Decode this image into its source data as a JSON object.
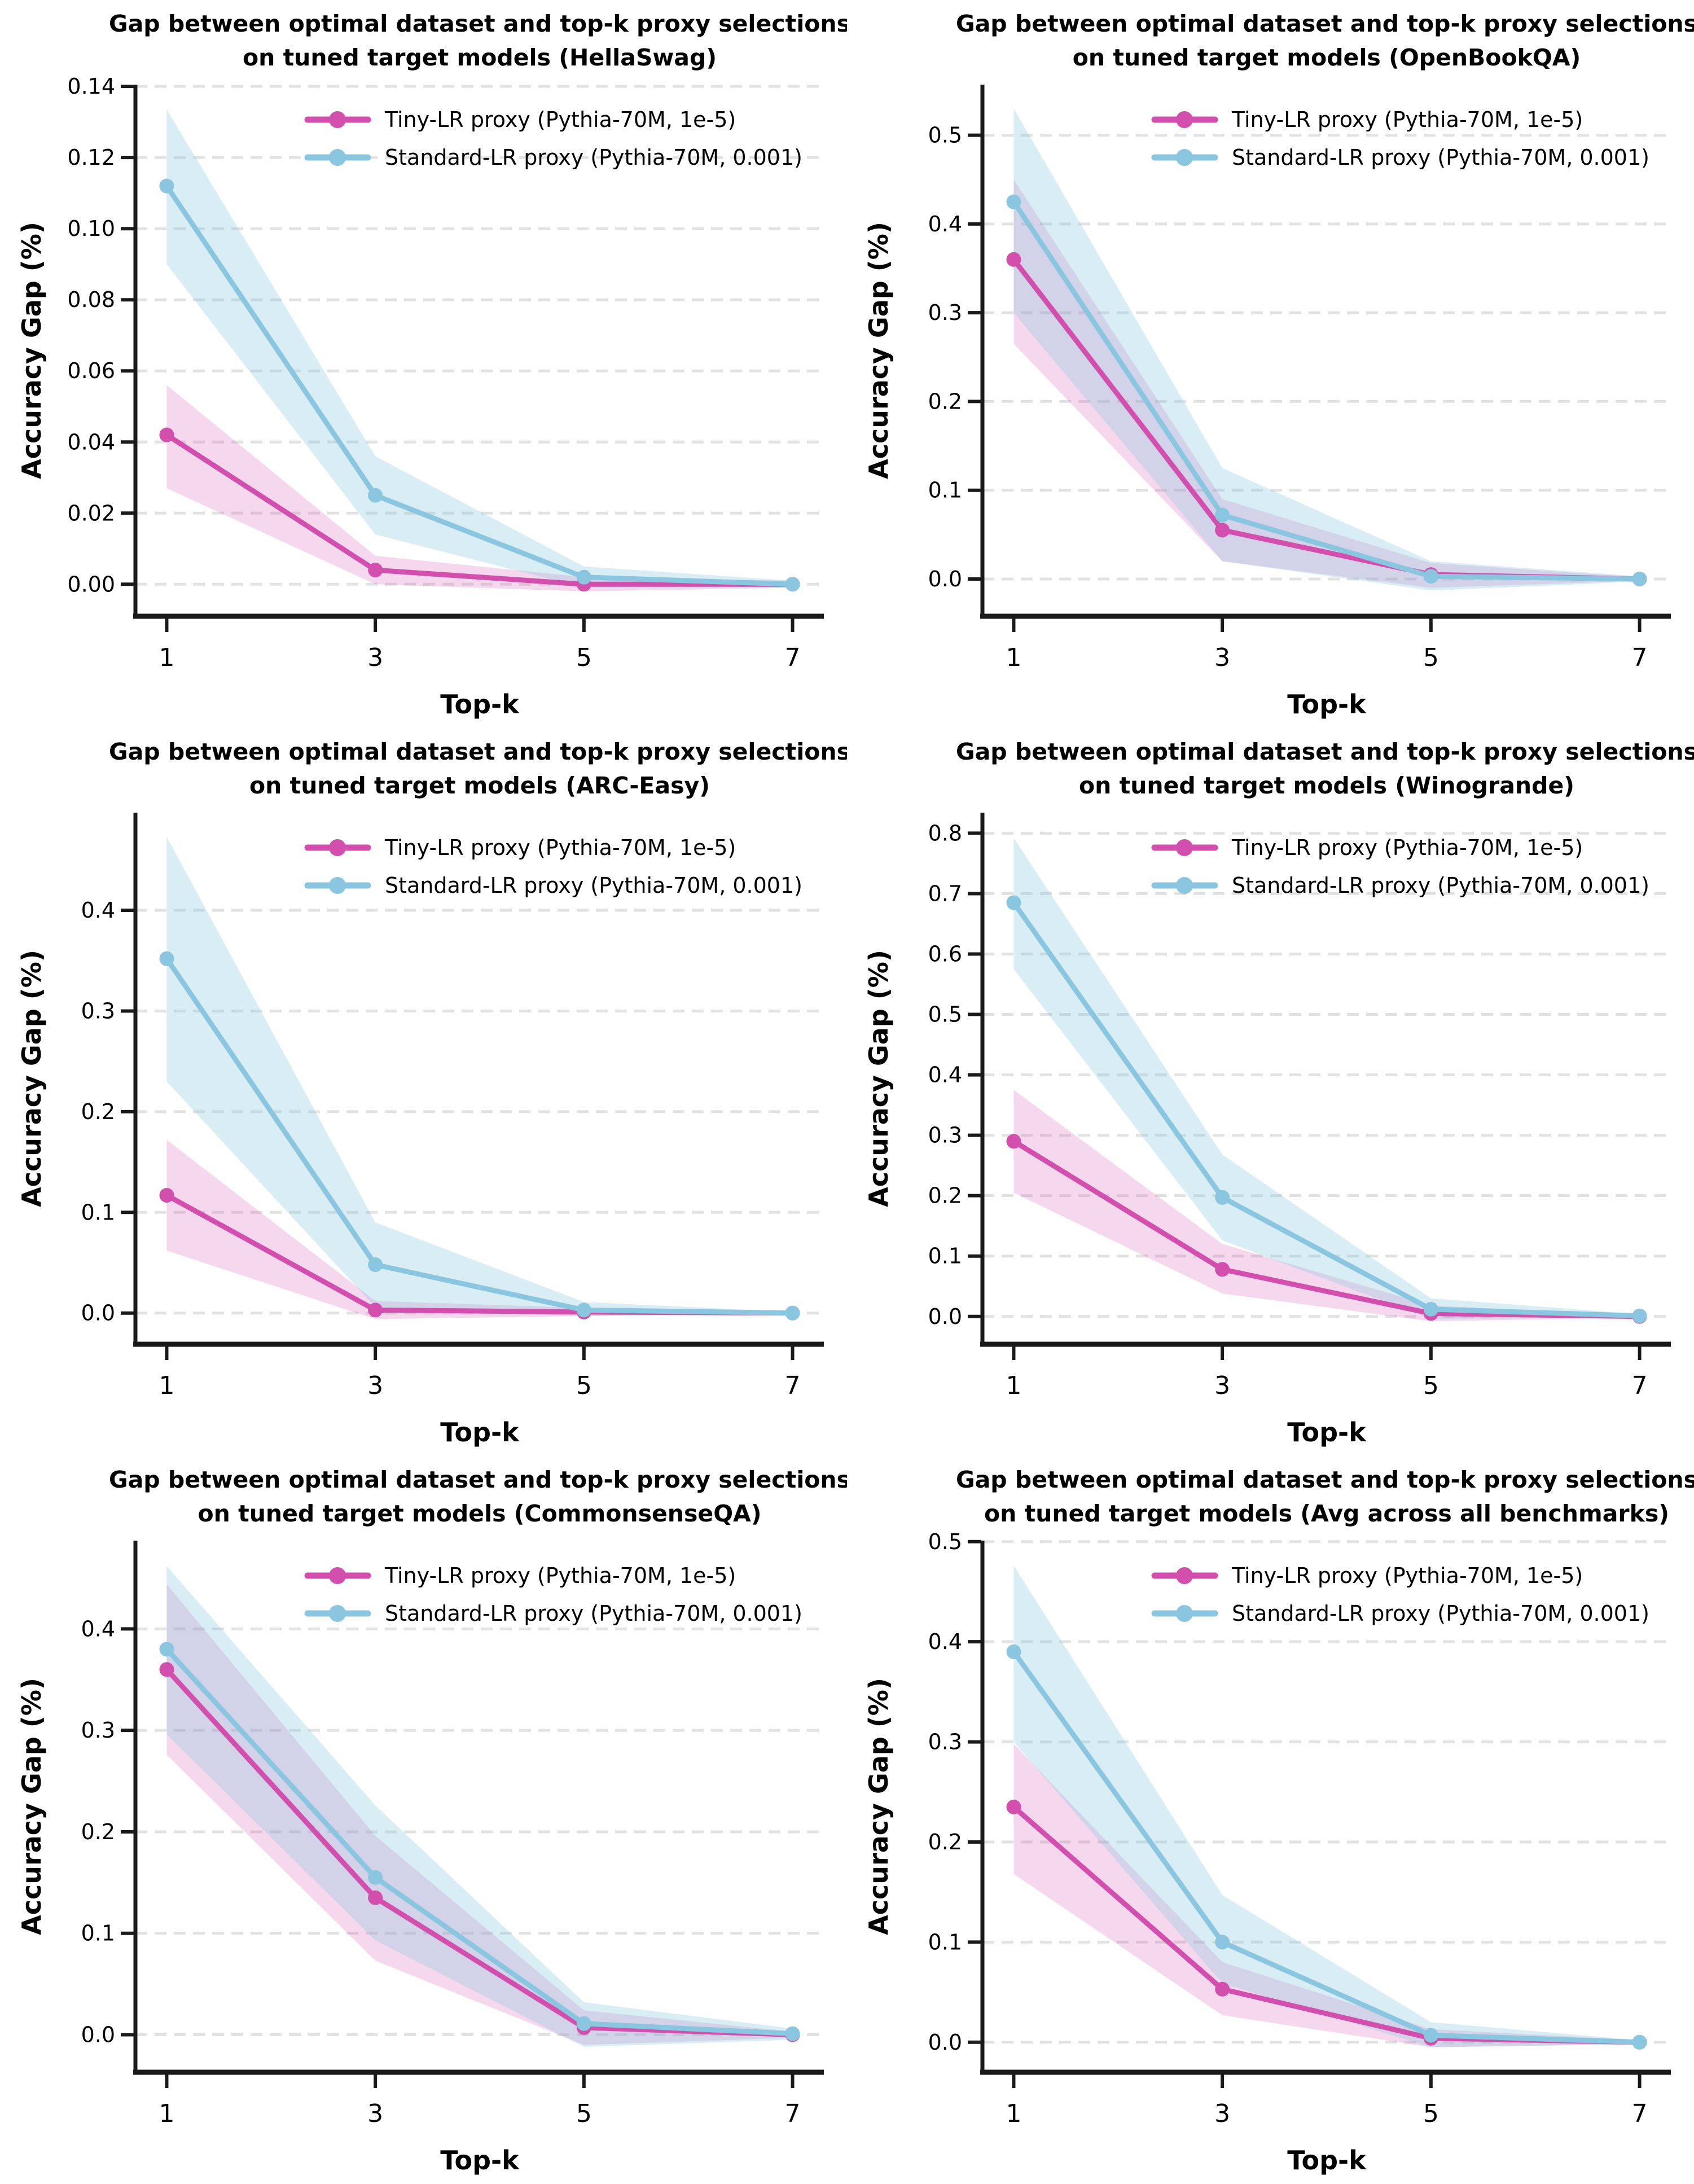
{
  "figure": {
    "title_line1": "Gap between optimal dataset and top-k proxy selections",
    "xlabel": "Top-k",
    "ylabel": "Accuracy Gap (%)",
    "x_tick_labels": [
      "1",
      "3",
      "5",
      "7"
    ],
    "legend": {
      "items": [
        {
          "label": "Tiny-LR proxy (Pythia-70M, 1e-5)",
          "color": "#d24fae"
        },
        {
          "label": "Standard-LR proxy (Pythia-70M, 0.001)",
          "color": "#8ac6e0"
        }
      ]
    },
    "colors": {
      "tiny_lr": "#d24fae",
      "standard_lr": "#8ac6e0",
      "gridline": "#e2e2e2",
      "axis": "#1a1a1a",
      "text": "#000000"
    }
  },
  "chart_data": [
    {
      "type": "line",
      "benchmark": "HellaSwag",
      "title": [
        "Gap between optimal dataset and top-k proxy selections",
        "on tuned target models (HellaSwag)"
      ],
      "xlabel": "Top-k",
      "ylabel": "Accuracy Gap (%)",
      "x": [
        1,
        3,
        5,
        7
      ],
      "xlim": [
        0.7,
        7.3
      ],
      "ylim": [
        -0.009,
        0.1405
      ],
      "yticks": [
        0,
        0.02,
        0.04,
        0.06,
        0.08,
        0.1,
        0.12,
        0.14
      ],
      "ytick_decimals": 2,
      "grid": "dashed-horizontal",
      "legend_position": "upper center inside",
      "series": [
        {
          "name": "Tiny-LR proxy (Pythia-70M, 1e-5)",
          "color": "#d24fae",
          "band_opacity": 0.22,
          "values": [
            0.042,
            0.004,
            0.0,
            0.0
          ],
          "band_low": [
            0.027,
            0.0,
            -0.002,
            -0.001
          ],
          "band_high": [
            0.056,
            0.008,
            0.002,
            0.001
          ]
        },
        {
          "name": "Standard-LR proxy (Pythia-70M, 0.001)",
          "color": "#8ac6e0",
          "band_opacity": 0.32,
          "values": [
            0.112,
            0.025,
            0.002,
            0.0
          ],
          "band_low": [
            0.09,
            0.014,
            -0.001,
            -0.001
          ],
          "band_high": [
            0.1335,
            0.036,
            0.005,
            0.001
          ]
        }
      ]
    },
    {
      "type": "line",
      "benchmark": "OpenBookQA",
      "title": [
        "Gap between optimal dataset and top-k proxy selections",
        "on tuned target models (OpenBookQA)"
      ],
      "xlabel": "Top-k",
      "ylabel": "Accuracy Gap (%)",
      "x": [
        1,
        3,
        5,
        7
      ],
      "xlim": [
        0.7,
        7.3
      ],
      "ylim": [
        -0.042,
        0.557
      ],
      "yticks": [
        0,
        0.1,
        0.2,
        0.3,
        0.4,
        0.5
      ],
      "ytick_decimals": 1,
      "grid": "dashed-horizontal",
      "legend_position": "upper center inside",
      "series": [
        {
          "name": "Tiny-LR proxy (Pythia-70M, 1e-5)",
          "color": "#d24fae",
          "band_opacity": 0.22,
          "values": [
            0.36,
            0.055,
            0.005,
            0.0
          ],
          "band_low": [
            0.265,
            0.02,
            -0.01,
            -0.002
          ],
          "band_high": [
            0.45,
            0.09,
            0.018,
            0.002
          ]
        },
        {
          "name": "Standard-LR proxy (Pythia-70M, 0.001)",
          "color": "#8ac6e0",
          "band_opacity": 0.32,
          "values": [
            0.425,
            0.072,
            0.003,
            0.0
          ],
          "band_low": [
            0.3,
            0.02,
            -0.013,
            -0.003
          ],
          "band_high": [
            0.53,
            0.125,
            0.02,
            0.003
          ]
        }
      ]
    },
    {
      "type": "line",
      "benchmark": "ARC-Easy",
      "title": [
        "Gap between optimal dataset and top-k proxy selections",
        "on tuned target models (ARC-Easy)"
      ],
      "xlabel": "Top-k",
      "ylabel": "Accuracy Gap (%)",
      "x": [
        1,
        3,
        5,
        7
      ],
      "xlim": [
        0.7,
        7.3
      ],
      "ylim": [
        -0.031,
        0.497
      ],
      "yticks": [
        0,
        0.1,
        0.2,
        0.3,
        0.4
      ],
      "ytick_decimals": 1,
      "grid": "dashed-horizontal",
      "legend_position": "upper center inside",
      "series": [
        {
          "name": "Tiny-LR proxy (Pythia-70M, 1e-5)",
          "color": "#d24fae",
          "band_opacity": 0.22,
          "values": [
            0.117,
            0.003,
            0.001,
            0.0
          ],
          "band_low": [
            0.062,
            -0.006,
            -0.003,
            -0.001
          ],
          "band_high": [
            0.172,
            0.012,
            0.005,
            0.001
          ]
        },
        {
          "name": "Standard-LR proxy (Pythia-70M, 0.001)",
          "color": "#8ac6e0",
          "band_opacity": 0.32,
          "values": [
            0.352,
            0.048,
            0.003,
            0.0
          ],
          "band_low": [
            0.23,
            0.006,
            -0.003,
            -0.001
          ],
          "band_high": [
            0.473,
            0.09,
            0.011,
            0.001
          ]
        }
      ]
    },
    {
      "type": "line",
      "benchmark": "Winogrande",
      "title": [
        "Gap between optimal dataset and top-k proxy selections",
        "on tuned target models (Winogrande)"
      ],
      "xlabel": "Top-k",
      "ylabel": "Accuracy Gap (%)",
      "x": [
        1,
        3,
        5,
        7
      ],
      "xlim": [
        0.7,
        7.3
      ],
      "ylim": [
        -0.046,
        0.834
      ],
      "yticks": [
        0,
        0.1,
        0.2,
        0.3,
        0.4,
        0.5,
        0.6,
        0.7,
        0.8
      ],
      "ytick_decimals": 1,
      "grid": "dashed-horizontal",
      "legend_position": "upper center inside",
      "series": [
        {
          "name": "Tiny-LR proxy (Pythia-70M, 1e-5)",
          "color": "#d24fae",
          "band_opacity": 0.22,
          "values": [
            0.29,
            0.078,
            0.005,
            0.0
          ],
          "band_low": [
            0.205,
            0.038,
            -0.008,
            -0.002
          ],
          "band_high": [
            0.375,
            0.12,
            0.018,
            0.002
          ]
        },
        {
          "name": "Standard-LR proxy (Pythia-70M, 0.001)",
          "color": "#8ac6e0",
          "band_opacity": 0.32,
          "values": [
            0.685,
            0.197,
            0.012,
            0.001
          ],
          "band_low": [
            0.575,
            0.126,
            -0.004,
            -0.002
          ],
          "band_high": [
            0.792,
            0.268,
            0.03,
            0.004
          ]
        }
      ]
    },
    {
      "type": "line",
      "benchmark": "CommonsenseQA",
      "title": [
        "Gap between optimal dataset and top-k proxy selections",
        "on tuned target models (CommonsenseQA)"
      ],
      "xlabel": "Top-k",
      "ylabel": "Accuracy Gap (%)",
      "x": [
        1,
        3,
        5,
        7
      ],
      "xlim": [
        0.7,
        7.3
      ],
      "ylim": [
        -0.037,
        0.487
      ],
      "yticks": [
        0,
        0.1,
        0.2,
        0.3,
        0.4
      ],
      "ytick_decimals": 1,
      "grid": "dashed-horizontal",
      "legend_position": "upper center inside",
      "series": [
        {
          "name": "Tiny-LR proxy (Pythia-70M, 1e-5)",
          "color": "#d24fae",
          "band_opacity": 0.22,
          "values": [
            0.36,
            0.135,
            0.007,
            0.0
          ],
          "band_low": [
            0.276,
            0.073,
            -0.01,
            -0.003
          ],
          "band_high": [
            0.444,
            0.196,
            0.024,
            0.003
          ]
        },
        {
          "name": "Standard-LR proxy (Pythia-70M, 0.001)",
          "color": "#8ac6e0",
          "band_opacity": 0.32,
          "values": [
            0.38,
            0.155,
            0.011,
            0.001
          ],
          "band_low": [
            0.296,
            0.093,
            -0.012,
            -0.005
          ],
          "band_high": [
            0.462,
            0.226,
            0.032,
            0.006
          ]
        }
      ]
    },
    {
      "type": "line",
      "benchmark": "Avg across all benchmarks",
      "title": [
        "Gap between optimal dataset and top-k proxy selections",
        "on tuned target models (Avg across all benchmarks)"
      ],
      "xlabel": "Top-k",
      "ylabel": "Accuracy Gap (%)",
      "x": [
        1,
        3,
        5,
        7
      ],
      "xlim": [
        0.7,
        7.3
      ],
      "ylim": [
        -0.03,
        0.501
      ],
      "yticks": [
        0,
        0.1,
        0.2,
        0.3,
        0.4,
        0.5
      ],
      "ytick_decimals": 1,
      "grid": "dashed-horizontal",
      "legend_position": "upper center inside",
      "series": [
        {
          "name": "Tiny-LR proxy (Pythia-70M, 1e-5)",
          "color": "#d24fae",
          "band_opacity": 0.22,
          "values": [
            0.235,
            0.053,
            0.004,
            0.0
          ],
          "band_low": [
            0.168,
            0.027,
            -0.005,
            -0.002
          ],
          "band_high": [
            0.298,
            0.08,
            0.013,
            0.002
          ]
        },
        {
          "name": "Standard-LR proxy (Pythia-70M, 0.001)",
          "color": "#8ac6e0",
          "band_opacity": 0.32,
          "values": [
            0.39,
            0.1,
            0.007,
            0.0
          ],
          "band_low": [
            0.3,
            0.059,
            -0.005,
            -0.002
          ],
          "band_high": [
            0.476,
            0.147,
            0.02,
            0.002
          ]
        }
      ]
    }
  ]
}
